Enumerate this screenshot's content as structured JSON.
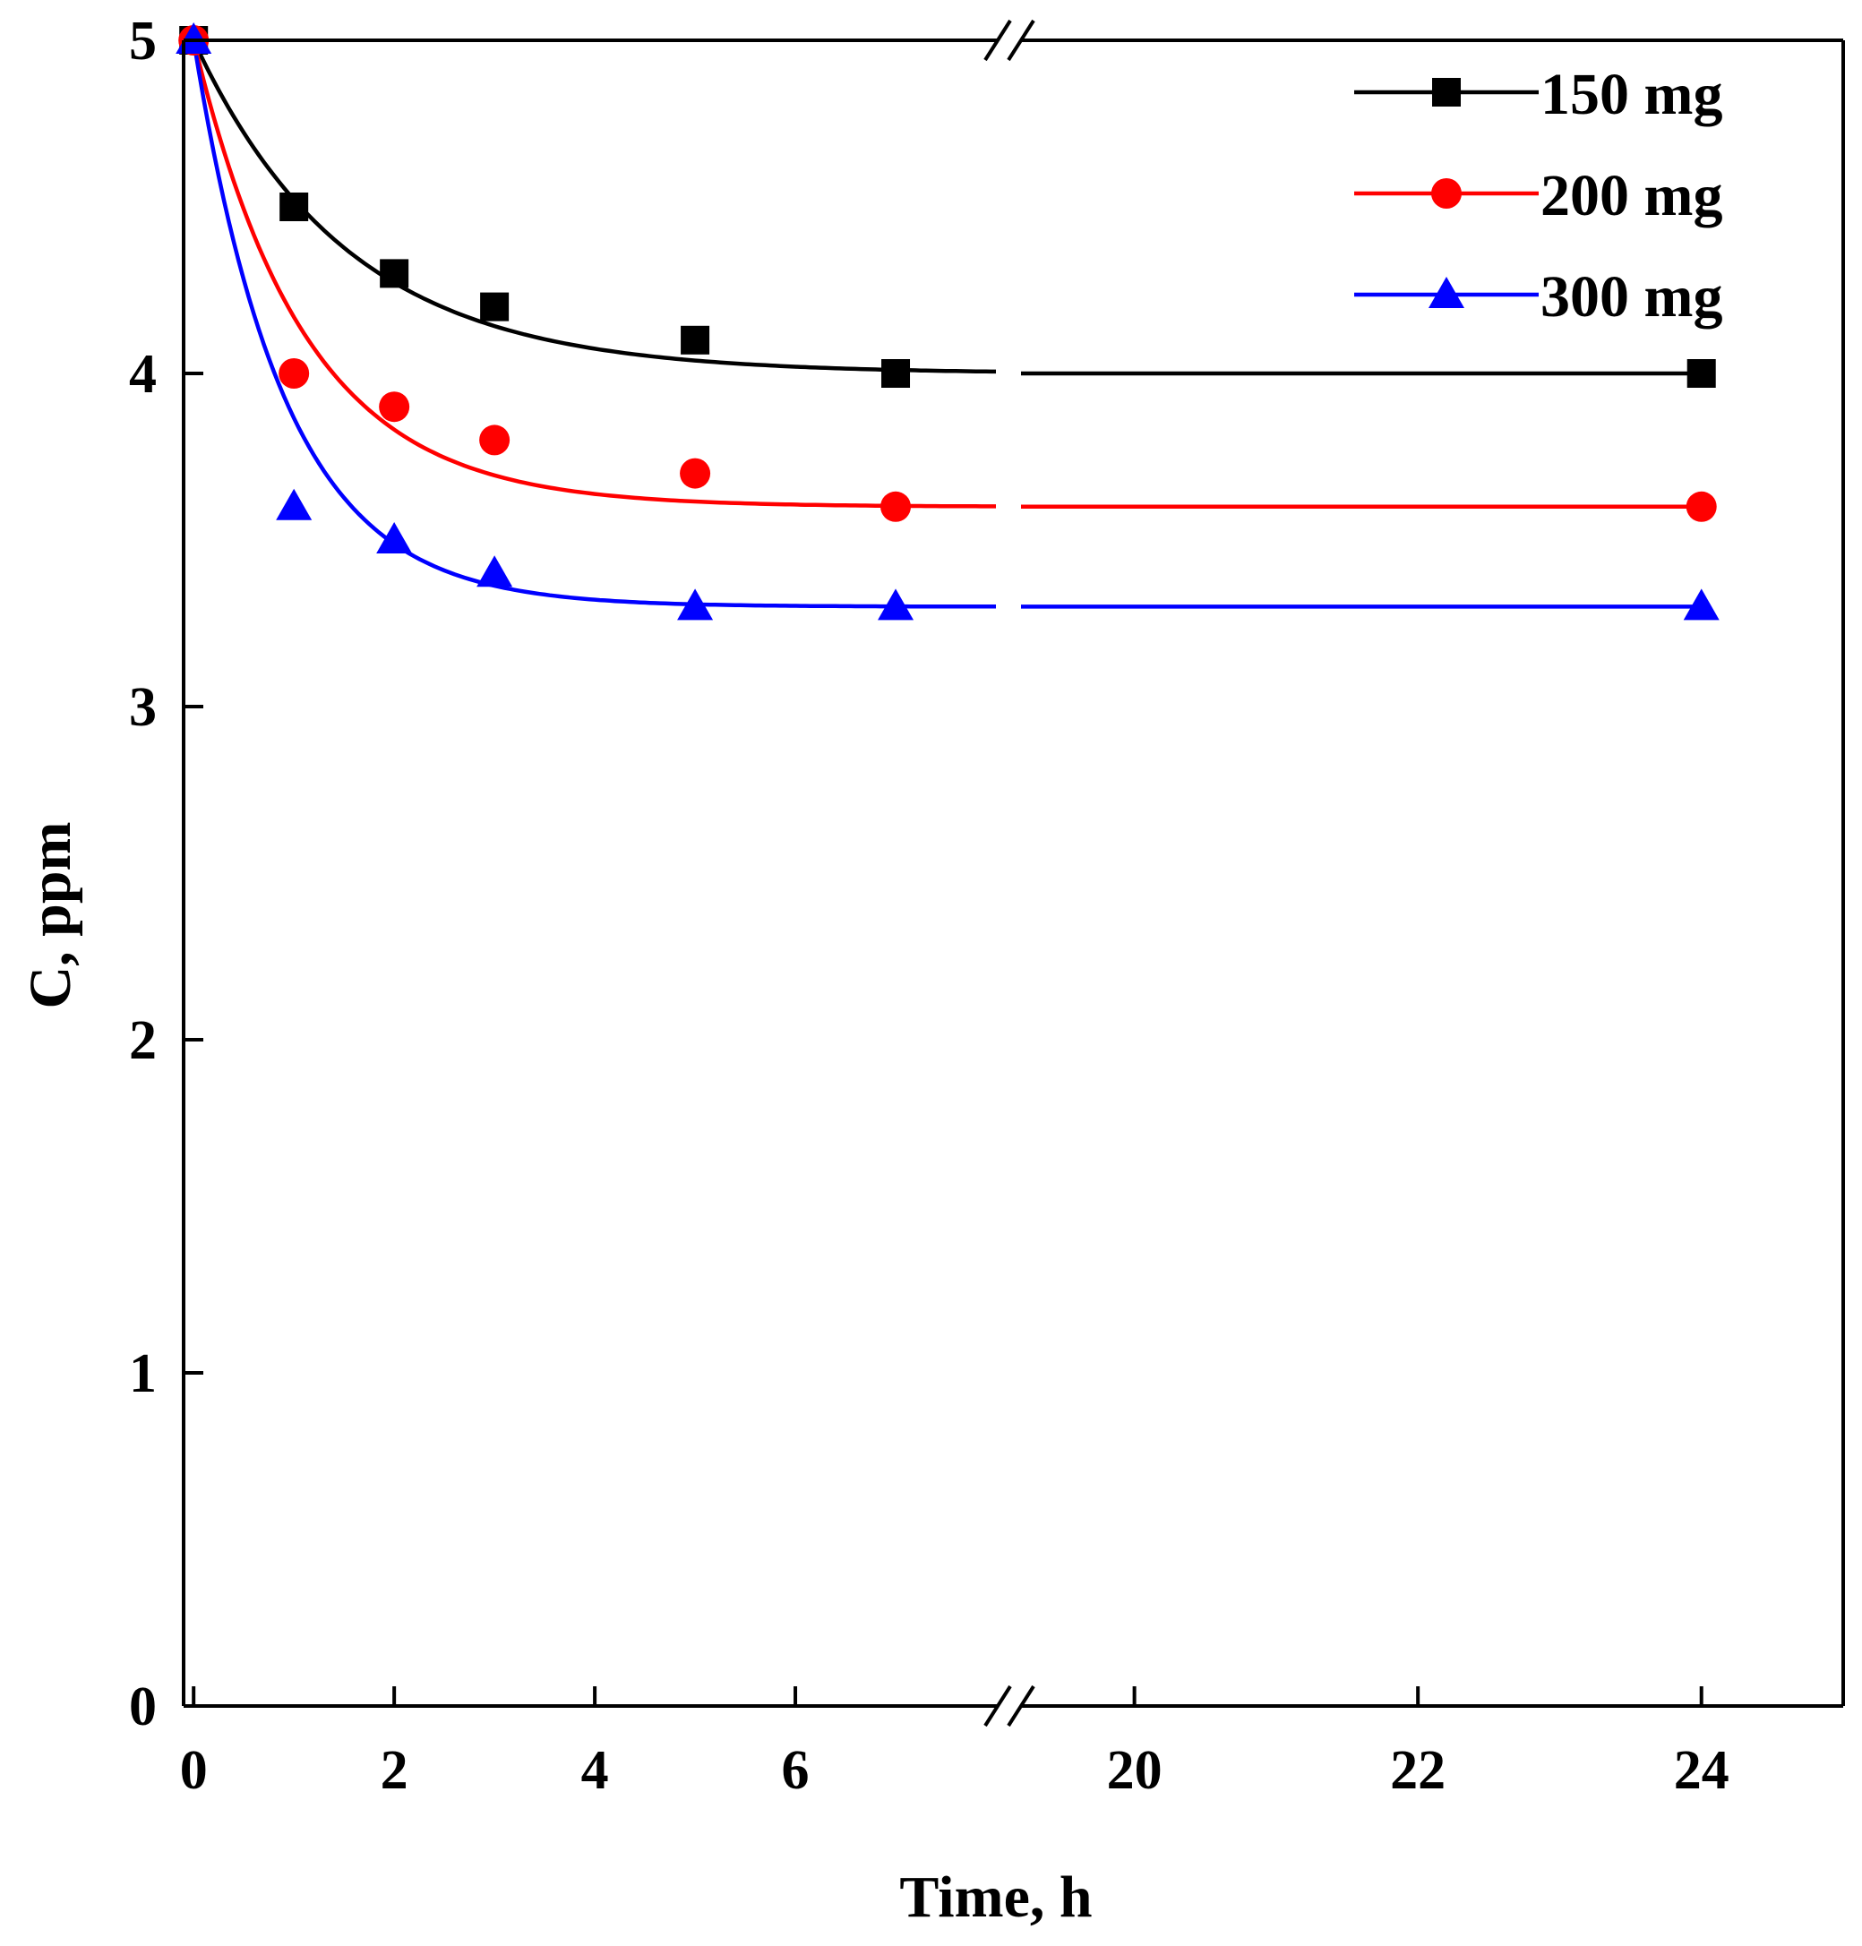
{
  "chart_data": {
    "type": "line",
    "title": "",
    "xlabel": "Time, h",
    "ylabel": "C, ppm",
    "ylim": [
      0,
      5
    ],
    "x_axis_break": {
      "before": 8,
      "after": 19.2
    },
    "x_segments": [
      {
        "xlim": [
          -0.1,
          8
        ]
      },
      {
        "xlim": [
          19.2,
          25
        ]
      }
    ],
    "x_tick_labels": [
      "0",
      "2",
      "4",
      "6",
      "20",
      "22",
      "24"
    ],
    "x_tick_values": [
      0,
      2,
      4,
      6,
      20,
      22,
      24
    ],
    "y_tick_labels": [
      "0",
      "1",
      "2",
      "3",
      "4",
      "5"
    ],
    "y_tick_values": [
      0,
      1,
      2,
      3,
      4,
      5
    ],
    "grid": false,
    "legend": "top-right",
    "series": [
      {
        "name": "150 mg",
        "color": "#000000",
        "marker": "square",
        "x": [
          0,
          1,
          2,
          3,
          5,
          7,
          24
        ],
        "y": [
          5.0,
          4.5,
          4.3,
          4.2,
          4.1,
          4.0,
          4.0
        ],
        "fit": {
          "c_inf": 4.0,
          "k": 0.65
        }
      },
      {
        "name": "200 mg",
        "color": "#ff0000",
        "marker": "circle",
        "x": [
          0,
          1,
          2,
          3,
          5,
          7,
          24
        ],
        "y": [
          5.0,
          4.0,
          3.9,
          3.8,
          3.7,
          3.6,
          3.6
        ],
        "fit": {
          "c_inf": 3.6,
          "k": 0.9
        }
      },
      {
        "name": "300 mg",
        "color": "#0000ff",
        "marker": "triangle",
        "x": [
          0,
          1,
          2,
          3,
          5,
          7,
          24
        ],
        "y": [
          5.0,
          3.6,
          3.5,
          3.4,
          3.3,
          3.3,
          3.3
        ],
        "fit": {
          "c_inf": 3.3,
          "k": 1.1
        }
      }
    ]
  }
}
